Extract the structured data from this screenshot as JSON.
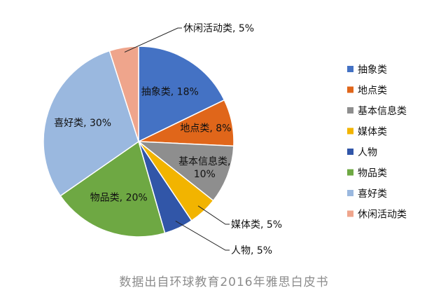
{
  "chart_data": {
    "type": "pie",
    "categories": [
      "抽象类",
      "地点类",
      "基本信息类",
      "媒体类",
      "人物",
      "物品类",
      "喜好类",
      "休闲活动类"
    ],
    "values": [
      18,
      8,
      10,
      5,
      5,
      20,
      30,
      5
    ],
    "data_labels": [
      "抽象类, 18%",
      "地点类, 8%",
      "基本信息类,\n10%",
      "媒体类, 5%",
      "人物, 5%",
      "物品类, 20%",
      "喜好类, 30%",
      "休闲活动类, 5%"
    ],
    "colors": [
      "#4472C4",
      "#E0661A",
      "#8E8E8E",
      "#F2B400",
      "#3156A8",
      "#6EA843",
      "#9AB8DF",
      "#EFA58C"
    ],
    "legend": [
      "抽象类",
      "地点类",
      "基本信息类",
      "媒体类",
      "人物",
      "物品类",
      "喜好类",
      "休闲活动类"
    ],
    "legend_position": "right",
    "start_angle": "12 o'clock, clockwise"
  },
  "source": "数据出自环球教育2016年雅思白皮书"
}
